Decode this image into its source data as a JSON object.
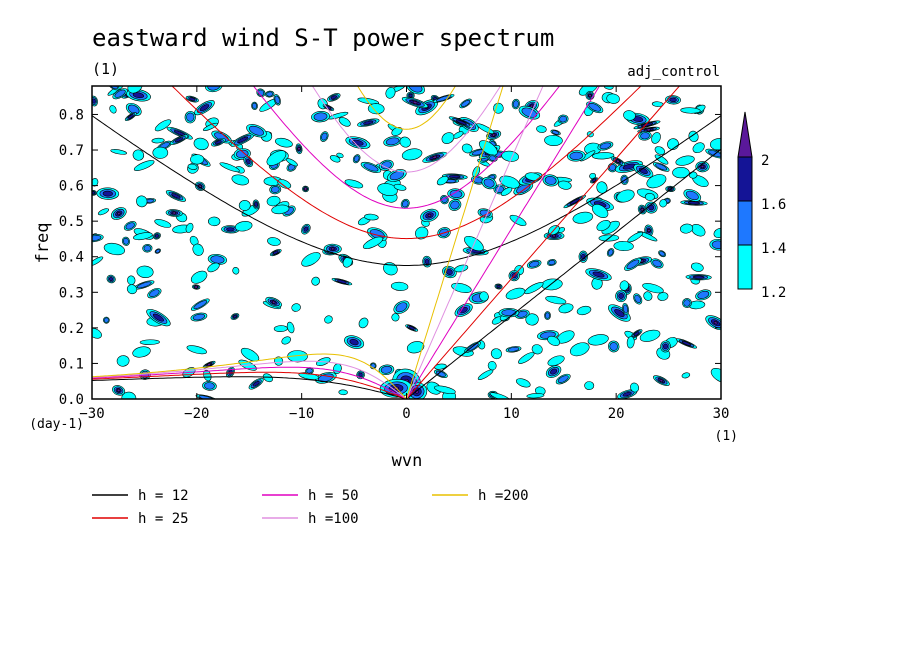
{
  "chart_data": {
    "type": "heatmap",
    "title": "eastward wind S-T power spectrum",
    "subtitle": "(1)",
    "run_label": "adj_control",
    "xlabel": "wvn",
    "ylabel": "freq",
    "x_unit": "(1)",
    "y_unit": "(day-1)",
    "xlim": [
      -30,
      30
    ],
    "ylim": [
      0.0,
      0.88
    ],
    "xticks": [
      -30,
      -20,
      -10,
      0,
      10,
      20,
      30
    ],
    "yticks": [
      0.0,
      0.1,
      0.2,
      0.3,
      0.4,
      0.5,
      0.6,
      0.7,
      0.8
    ],
    "colorbar": {
      "levels": [
        1.2,
        1.4,
        1.6,
        2
      ],
      "colors": [
        "#00ffff",
        "#1e78ff",
        "#141496",
        "#5a189a"
      ]
    },
    "dispersion_curves": [
      {
        "name": "h = 12",
        "h": 12,
        "color": "#000000"
      },
      {
        "name": "h = 25",
        "h": 25,
        "color": "#e00000"
      },
      {
        "name": "h = 50",
        "h": 50,
        "color": "#e000c0"
      },
      {
        "name": "h =100",
        "h": 100,
        "color": "#e090e0"
      },
      {
        "name": "h =200",
        "h": 200,
        "color": "#e8c000"
      }
    ],
    "legend_placement": "bottom",
    "grid": false
  }
}
